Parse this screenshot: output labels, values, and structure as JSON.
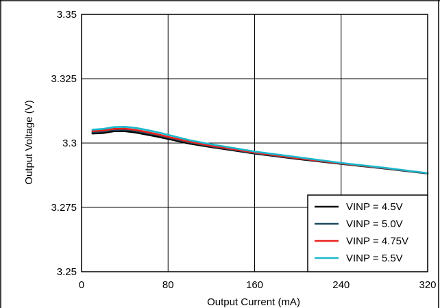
{
  "chart_data": {
    "type": "line",
    "title": "",
    "xlabel": "Output Current (mA)",
    "ylabel": "Output Voltage (V)",
    "xlim": [
      0,
      320
    ],
    "ylim": [
      3.25,
      3.35
    ],
    "x_ticks": [
      0,
      80,
      160,
      240,
      320
    ],
    "x_tick_labels": [
      "0",
      "80",
      "160",
      "240",
      "320"
    ],
    "y_ticks": [
      3.25,
      3.275,
      3.3,
      3.325,
      3.35
    ],
    "y_tick_labels": [
      "3.25",
      "3.275",
      "3.3",
      "3.325",
      "3.35"
    ],
    "grid": true,
    "legend_position": "bottom-right",
    "series": [
      {
        "name": "VINP = 4.5V",
        "color": "#000000",
        "x": [
          10,
          20,
          30,
          40,
          50,
          60,
          70,
          80,
          100,
          120,
          160,
          200,
          240,
          280,
          320
        ],
        "y": [
          3.3037,
          3.3039,
          3.3046,
          3.3046,
          3.3041,
          3.3033,
          3.3025,
          3.3016,
          3.2998,
          3.2984,
          3.2959,
          3.2938,
          3.2919,
          3.2901,
          3.2882
        ]
      },
      {
        "name": "VINP = 5.0V",
        "color": "#1a4a5c",
        "x": [
          10,
          20,
          30,
          40,
          50,
          60,
          70,
          80,
          100,
          120,
          160,
          200,
          240,
          280,
          320
        ],
        "y": [
          3.3042,
          3.3045,
          3.3051,
          3.3052,
          3.3047,
          3.3039,
          3.3031,
          3.3021,
          3.3002,
          3.2987,
          3.2961,
          3.294,
          3.292,
          3.2902,
          3.2883
        ]
      },
      {
        "name": "VINP = 4.75V",
        "color": "#e8211f",
        "x": [
          10,
          20,
          30,
          40,
          50,
          60,
          70,
          80,
          100,
          120,
          160,
          200,
          240,
          280,
          320
        ],
        "y": [
          3.3046,
          3.3049,
          3.3055,
          3.3056,
          3.3051,
          3.3043,
          3.3034,
          3.3024,
          3.3005,
          3.2989,
          3.2963,
          3.2941,
          3.2921,
          3.2903,
          3.2883
        ]
      },
      {
        "name": "VINP = 5.5V",
        "color": "#1ab8cc",
        "x": [
          10,
          20,
          30,
          40,
          50,
          60,
          70,
          80,
          100,
          120,
          160,
          200,
          240,
          280,
          320
        ],
        "y": [
          3.3052,
          3.3055,
          3.3062,
          3.3063,
          3.3059,
          3.3051,
          3.3042,
          3.3032,
          3.3011,
          3.2995,
          3.2967,
          3.2945,
          3.2923,
          3.2904,
          3.2883
        ]
      }
    ]
  }
}
